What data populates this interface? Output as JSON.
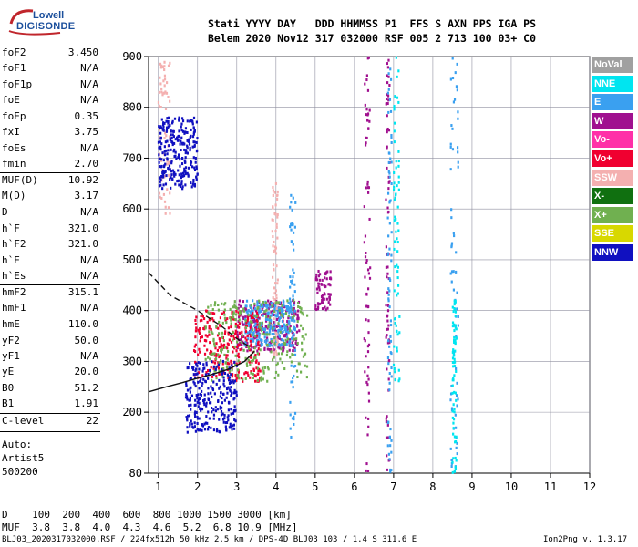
{
  "logo": {
    "line1": "Lowell",
    "line2": "DIGISONDE"
  },
  "header": {
    "line1": "Stati YYYY DAY   DDD HHMMSS P1  FFS S AXN PPS IGA PS",
    "line2": "Belem 2020 Nov12 317 032000 RSF 005 2 713 100 03+ C0"
  },
  "params": [
    {
      "name": "foF2",
      "value": "3.450"
    },
    {
      "name": "foF1",
      "value": "N/A"
    },
    {
      "name": "foF1p",
      "value": "N/A"
    },
    {
      "name": "foE",
      "value": "N/A"
    },
    {
      "name": "foEp",
      "value": "0.35"
    },
    {
      "name": "fxI",
      "value": "3.75"
    },
    {
      "name": "foEs",
      "value": "N/A"
    },
    {
      "name": "fmin",
      "value": "2.70"
    },
    {
      "name": "MUF(D)",
      "value": "10.92"
    },
    {
      "name": "M(D)",
      "value": "3.17"
    },
    {
      "name": "D",
      "value": "N/A"
    },
    {
      "name": "h`F",
      "value": "321.0"
    },
    {
      "name": "h`F2",
      "value": "321.0"
    },
    {
      "name": "h`E",
      "value": "N/A"
    },
    {
      "name": "h`Es",
      "value": "N/A"
    },
    {
      "name": "hmF2",
      "value": "315.1"
    },
    {
      "name": "hmF1",
      "value": "N/A"
    },
    {
      "name": "hmE",
      "value": "110.0"
    },
    {
      "name": "yF2",
      "value": "50.0"
    },
    {
      "name": "yF1",
      "value": "N/A"
    },
    {
      "name": "yE",
      "value": "20.0"
    },
    {
      "name": "B0",
      "value": "51.2"
    },
    {
      "name": "B1",
      "value": "1.91"
    },
    {
      "name": "C-level",
      "value": "22"
    }
  ],
  "auto": {
    "line1": "Auto:",
    "line2": "Artist5",
    "line3": "500200"
  },
  "legend": [
    {
      "label": "NoVal",
      "color": "#a0a0a0"
    },
    {
      "label": "NNE",
      "color": "#00e5f0"
    },
    {
      "label": "E",
      "color": "#3aa0f0"
    },
    {
      "label": "W",
      "color": "#a0108f"
    },
    {
      "label": "Vo-",
      "color": "#ff30a8"
    },
    {
      "label": "Vo+",
      "color": "#f00030"
    },
    {
      "label": "SSW",
      "color": "#f4b0b0"
    },
    {
      "label": "X-",
      "color": "#107010"
    },
    {
      "label": "X+",
      "color": "#70b050"
    },
    {
      "label": "SSE",
      "color": "#d8d800"
    },
    {
      "label": "NNW",
      "color": "#1010c0"
    }
  ],
  "footer": {
    "line1": "D    100  200  400  600  800 1000 1500 3000 [km]",
    "line2": "MUF  3.8  3.8  4.0  4.3  4.6  5.2  6.8 10.9 [MHz]",
    "line3": "BLJ03_2020317032000.RSF / 224fx512h 50 kHz 2.5 km / DPS-4D BLJ03 103 / 1.4 S 311.6 E",
    "version": "Ion2Png v. 1.3.17"
  },
  "chart_data": {
    "type": "scatter",
    "title": "",
    "xlabel": "",
    "ylabel": "",
    "xlim": [
      0.75,
      12.0
    ],
    "ylim": [
      80,
      900
    ],
    "x_ticks": [
      1,
      2,
      3,
      4,
      5,
      6,
      7,
      8,
      9,
      10,
      11,
      12
    ],
    "y_ticks": [
      200,
      300,
      400,
      500,
      600,
      700,
      800,
      900
    ],
    "y_labels": [
      "80",
      "200",
      "300",
      "400",
      "500",
      "600",
      "700",
      "800",
      "900"
    ],
    "grid": true,
    "series": [
      {
        "name": "W",
        "color": "#a0108f",
        "clusters": [
          {
            "x": [
              6.25,
              6.4
            ],
            "y": [
              80,
              900
            ]
          },
          {
            "x": [
              6.8,
              6.9
            ],
            "y": [
              80,
              900
            ]
          },
          {
            "x": [
              3.0,
              4.6
            ],
            "y": [
              320,
              420
            ]
          },
          {
            "x": [
              5.0,
              5.4
            ],
            "y": [
              400,
              480
            ]
          }
        ]
      },
      {
        "name": "E",
        "color": "#3aa0f0",
        "clusters": [
          {
            "x": [
              4.35,
              4.5
            ],
            "y": [
              150,
              640
            ]
          },
          {
            "x": [
              6.85,
              6.95
            ],
            "y": [
              80,
              900
            ]
          },
          {
            "x": [
              8.45,
              8.65
            ],
            "y": [
              80,
              900
            ]
          },
          {
            "x": [
              3.2,
              4.4
            ],
            "y": [
              330,
              420
            ]
          }
        ]
      },
      {
        "name": "NNE",
        "color": "#00e5f0",
        "clusters": [
          {
            "x": [
              7.0,
              7.15
            ],
            "y": [
              200,
              900
            ]
          },
          {
            "x": [
              8.5,
              8.6
            ],
            "y": [
              80,
              420
            ]
          }
        ]
      },
      {
        "name": "SSW",
        "color": "#f4b0b0",
        "clusters": [
          {
            "x": [
              3.9,
              4.05
            ],
            "y": [
              300,
              650
            ]
          },
          {
            "x": [
              1.0,
              1.3
            ],
            "y": [
              590,
              890
            ]
          }
        ]
      },
      {
        "name": "Vo+",
        "color": "#f00030",
        "clusters": [
          {
            "x": [
              1.9,
              3.6
            ],
            "y": [
              260,
              400
            ]
          }
        ]
      },
      {
        "name": "X+",
        "color": "#70b050",
        "clusters": [
          {
            "x": [
              2.2,
              4.8
            ],
            "y": [
              260,
              420
            ]
          }
        ]
      },
      {
        "name": "NNW",
        "color": "#1010c0",
        "clusters": [
          {
            "x": [
              1.0,
              2.0
            ],
            "y": [
              640,
              780
            ]
          },
          {
            "x": [
              1.7,
              3.0
            ],
            "y": [
              160,
              300
            ]
          }
        ]
      }
    ],
    "profile_dashed": {
      "name": "",
      "points": [
        [
          0.75,
          475
        ],
        [
          1.3,
          430
        ],
        [
          2.0,
          400
        ],
        [
          2.6,
          370
        ],
        [
          3.0,
          345
        ],
        [
          3.3,
          330
        ]
      ]
    },
    "profile_solid": {
      "name": "",
      "points": [
        [
          0.75,
          240
        ],
        [
          1.2,
          250
        ],
        [
          1.6,
          258
        ],
        [
          2.0,
          267
        ],
        [
          2.4,
          275
        ],
        [
          2.8,
          285
        ],
        [
          3.2,
          300
        ],
        [
          3.45,
          320
        ]
      ]
    }
  }
}
